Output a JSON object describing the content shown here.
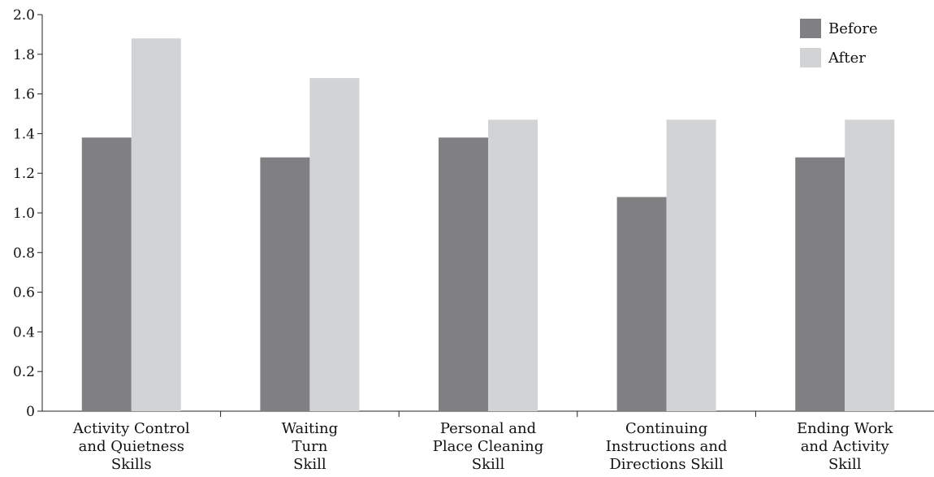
{
  "chart_data": {
    "type": "bar",
    "title": "",
    "xlabel": "",
    "ylabel": "",
    "ylim": [
      0,
      2.0
    ],
    "yticks": [
      "0",
      "0.2",
      "0.4",
      "0.6",
      "0.8",
      "1.0",
      "1.2",
      "1.4",
      "1.6",
      "1.8",
      "2.0"
    ],
    "categories": [
      [
        "Activity Control",
        "and Quietness",
        "Skills"
      ],
      [
        "Waiting",
        "Turn",
        "Skill"
      ],
      [
        "Personal and",
        "Place Cleaning",
        "Skill"
      ],
      [
        "Continuing",
        "Instructions and",
        "Directions Skill"
      ],
      [
        "Ending Work",
        "and Activity",
        "Skill"
      ]
    ],
    "series": [
      {
        "name": "Before",
        "color": "#808083",
        "values": [
          1.38,
          1.28,
          1.38,
          1.08,
          1.28
        ]
      },
      {
        "name": "After",
        "color": "#d2d3d5",
        "values": [
          1.88,
          1.68,
          1.47,
          1.47,
          1.47
        ]
      }
    ],
    "legend_position": "top-right",
    "grid": false
  }
}
